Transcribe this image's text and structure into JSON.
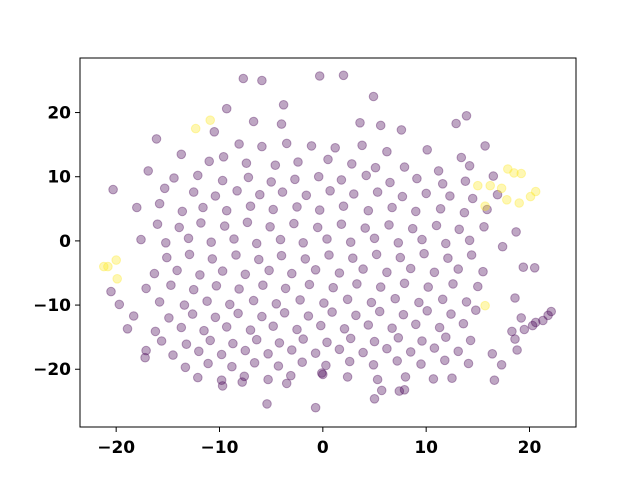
{
  "chart_data": {
    "type": "scatter",
    "title": "",
    "xlabel": "",
    "ylabel": "",
    "xlim": [
      -23.5,
      24.5
    ],
    "ylim": [
      -29,
      28.5
    ],
    "grid": false,
    "legend": "none",
    "x_ticks": [
      -20,
      -10,
      0,
      10,
      20
    ],
    "y_ticks": [
      -20,
      -10,
      0,
      10,
      20
    ],
    "x_tick_labels": [
      "−20",
      "−10",
      "0",
      "10",
      "20"
    ],
    "y_tick_labels": [
      "−20",
      "−10",
      "0",
      "10",
      "20"
    ],
    "marker_opacity": 0.35,
    "colors": {
      "purple": "#440154",
      "yellow": "#fde725"
    },
    "series": [
      {
        "color": "#440154",
        "points": [
          [
            -7.7,
            25.3
          ],
          [
            -5.9,
            25.0
          ],
          [
            -0.3,
            25.7
          ],
          [
            2.0,
            25.8
          ],
          [
            4.9,
            22.5
          ],
          [
            -3.8,
            21.2
          ],
          [
            -9.3,
            20.6
          ],
          [
            -6.7,
            18.6
          ],
          [
            -4.0,
            18.2
          ],
          [
            3.6,
            18.4
          ],
          [
            5.6,
            18.0
          ],
          [
            7.6,
            17.3
          ],
          [
            13.9,
            19.5
          ],
          [
            12.9,
            18.3
          ],
          [
            -16.1,
            15.9
          ],
          [
            -10.5,
            17.0
          ],
          [
            -8.1,
            15.1
          ],
          [
            -5.9,
            14.7
          ],
          [
            -3.5,
            15.2
          ],
          [
            -1.1,
            14.8
          ],
          [
            1.2,
            14.5
          ],
          [
            3.8,
            14.9
          ],
          [
            6.2,
            13.9
          ],
          [
            10.1,
            14.2
          ],
          [
            13.4,
            13.0
          ],
          [
            15.7,
            14.8
          ],
          [
            -13.7,
            13.5
          ],
          [
            -11.0,
            12.4
          ],
          [
            -9.6,
            13.1
          ],
          [
            -7.4,
            12.1
          ],
          [
            -4.6,
            11.8
          ],
          [
            -2.4,
            12.3
          ],
          [
            0.5,
            12.7
          ],
          [
            2.8,
            12.0
          ],
          [
            5.1,
            11.4
          ],
          [
            7.9,
            11.5
          ],
          [
            11.2,
            10.9
          ],
          [
            14.2,
            11.7
          ],
          [
            16.5,
            10.1
          ],
          [
            -16.9,
            10.9
          ],
          [
            -14.4,
            9.8
          ],
          [
            -12.1,
            10.2
          ],
          [
            -9.7,
            9.4
          ],
          [
            -7.2,
            9.9
          ],
          [
            -5.0,
            9.2
          ],
          [
            -2.7,
            9.6
          ],
          [
            -0.4,
            10.0
          ],
          [
            1.8,
            9.5
          ],
          [
            4.2,
            10.2
          ],
          [
            6.5,
            9.1
          ],
          [
            9.1,
            9.7
          ],
          [
            11.6,
            8.9
          ],
          [
            13.8,
            9.3
          ],
          [
            -20.3,
            8.0
          ],
          [
            -15.3,
            8.2
          ],
          [
            -12.5,
            7.6
          ],
          [
            -10.4,
            7.0
          ],
          [
            -8.3,
            7.8
          ],
          [
            -6.1,
            7.2
          ],
          [
            -3.9,
            7.6
          ],
          [
            -1.6,
            7.1
          ],
          [
            0.7,
            7.8
          ],
          [
            3.0,
            7.3
          ],
          [
            5.3,
            7.6
          ],
          [
            7.7,
            6.9
          ],
          [
            10.0,
            7.4
          ],
          [
            12.3,
            7.0
          ],
          [
            14.5,
            6.6
          ],
          [
            16.9,
            7.2
          ],
          [
            -18.0,
            5.2
          ],
          [
            -15.8,
            5.8
          ],
          [
            -13.6,
            4.6
          ],
          [
            -11.6,
            5.2
          ],
          [
            -9.3,
            4.7
          ],
          [
            -7.0,
            5.4
          ],
          [
            -4.8,
            4.9
          ],
          [
            -2.5,
            5.3
          ],
          [
            -0.3,
            4.8
          ],
          [
            2.0,
            5.4
          ],
          [
            4.4,
            4.7
          ],
          [
            6.7,
            5.2
          ],
          [
            9.0,
            4.6
          ],
          [
            11.4,
            5.0
          ],
          [
            13.7,
            4.4
          ],
          [
            15.9,
            4.9
          ],
          [
            -16.0,
            2.6
          ],
          [
            -13.9,
            2.1
          ],
          [
            -11.8,
            2.8
          ],
          [
            -9.5,
            2.3
          ],
          [
            -7.3,
            2.9
          ],
          [
            -5.1,
            2.2
          ],
          [
            -2.8,
            2.7
          ],
          [
            -0.5,
            2.1
          ],
          [
            1.8,
            2.6
          ],
          [
            4.1,
            2.0
          ],
          [
            6.4,
            2.5
          ],
          [
            8.7,
            1.9
          ],
          [
            11.0,
            2.4
          ],
          [
            13.2,
            1.8
          ],
          [
            15.6,
            2.2
          ],
          [
            18.7,
            1.4
          ],
          [
            -17.6,
            0.2
          ],
          [
            -15.2,
            -0.3
          ],
          [
            -13.0,
            0.4
          ],
          [
            -10.8,
            -0.2
          ],
          [
            -8.6,
            0.3
          ],
          [
            -6.4,
            -0.4
          ],
          [
            -4.1,
            0.2
          ],
          [
            -1.9,
            -0.3
          ],
          [
            0.4,
            0.3
          ],
          [
            2.7,
            -0.2
          ],
          [
            5.0,
            0.4
          ],
          [
            7.3,
            -0.3
          ],
          [
            9.6,
            0.2
          ],
          [
            11.9,
            -0.4
          ],
          [
            14.2,
            0.1
          ],
          [
            17.4,
            -0.9
          ],
          [
            -15.1,
            -2.6
          ],
          [
            -12.9,
            -2.1
          ],
          [
            -10.7,
            -2.8
          ],
          [
            -8.4,
            -2.2
          ],
          [
            -6.2,
            -2.9
          ],
          [
            -4.0,
            -2.3
          ],
          [
            -1.7,
            -2.8
          ],
          [
            0.6,
            -2.2
          ],
          [
            2.9,
            -2.7
          ],
          [
            5.2,
            -2.1
          ],
          [
            7.5,
            -2.6
          ],
          [
            9.8,
            -2.0
          ],
          [
            12.1,
            -2.7
          ],
          [
            14.4,
            -2.2
          ],
          [
            -16.3,
            -5.1
          ],
          [
            -14.1,
            -4.6
          ],
          [
            -11.9,
            -5.3
          ],
          [
            -9.7,
            -4.7
          ],
          [
            -7.5,
            -5.2
          ],
          [
            -5.2,
            -4.6
          ],
          [
            -3.0,
            -5.1
          ],
          [
            -0.7,
            -4.5
          ],
          [
            1.6,
            -5.0
          ],
          [
            3.9,
            -4.4
          ],
          [
            6.2,
            -4.9
          ],
          [
            8.5,
            -4.3
          ],
          [
            10.8,
            -4.9
          ],
          [
            13.1,
            -4.4
          ],
          [
            15.5,
            -4.8
          ],
          [
            19.4,
            -4.1
          ],
          [
            20.5,
            -4.2
          ],
          [
            -17.1,
            -7.4
          ],
          [
            -14.7,
            -6.9
          ],
          [
            -12.5,
            -7.6
          ],
          [
            -10.3,
            -7.0
          ],
          [
            -8.1,
            -7.5
          ],
          [
            -5.8,
            -6.9
          ],
          [
            -3.6,
            -7.4
          ],
          [
            -1.3,
            -6.8
          ],
          [
            1.0,
            -7.3
          ],
          [
            3.3,
            -6.7
          ],
          [
            5.6,
            -7.2
          ],
          [
            7.9,
            -6.6
          ],
          [
            10.2,
            -7.2
          ],
          [
            12.6,
            -6.7
          ],
          [
            15.0,
            -7.1
          ],
          [
            -20.5,
            -7.9
          ],
          [
            -19.7,
            -9.9
          ],
          [
            -15.8,
            -9.5
          ],
          [
            -13.4,
            -10.0
          ],
          [
            -11.2,
            -9.4
          ],
          [
            -9.0,
            -9.9
          ],
          [
            -6.7,
            -9.3
          ],
          [
            -4.5,
            -9.8
          ],
          [
            -2.2,
            -9.2
          ],
          [
            0.1,
            -9.7
          ],
          [
            2.4,
            -9.1
          ],
          [
            4.7,
            -9.6
          ],
          [
            7.0,
            -9.0
          ],
          [
            9.3,
            -9.6
          ],
          [
            11.6,
            -9.1
          ],
          [
            13.9,
            -9.5
          ],
          [
            18.6,
            -8.9
          ],
          [
            -18.3,
            -11.7
          ],
          [
            -14.9,
            -12.0
          ],
          [
            -12.6,
            -11.4
          ],
          [
            -10.4,
            -11.9
          ],
          [
            -8.2,
            -11.3
          ],
          [
            -5.9,
            -11.8
          ],
          [
            -3.7,
            -11.2
          ],
          [
            -1.4,
            -11.7
          ],
          [
            0.9,
            -11.1
          ],
          [
            3.2,
            -11.6
          ],
          [
            5.5,
            -11.0
          ],
          [
            7.8,
            -11.5
          ],
          [
            10.1,
            -10.9
          ],
          [
            12.4,
            -11.4
          ],
          [
            14.8,
            -10.8
          ],
          [
            19.2,
            -12.0
          ],
          [
            20.6,
            -12.7
          ],
          [
            21.3,
            -12.4
          ],
          [
            21.8,
            -11.6
          ],
          [
            22.1,
            -11.0
          ],
          [
            -18.9,
            -13.7
          ],
          [
            -16.2,
            -14.1
          ],
          [
            -13.7,
            -13.5
          ],
          [
            -11.5,
            -14.0
          ],
          [
            -9.3,
            -13.4
          ],
          [
            -7.0,
            -13.9
          ],
          [
            -4.8,
            -13.3
          ],
          [
            -2.5,
            -13.8
          ],
          [
            -0.2,
            -13.2
          ],
          [
            2.1,
            -13.7
          ],
          [
            4.4,
            -13.1
          ],
          [
            6.7,
            -13.6
          ],
          [
            9.0,
            -13.0
          ],
          [
            11.3,
            -13.5
          ],
          [
            13.6,
            -12.9
          ],
          [
            18.3,
            -14.1
          ],
          [
            19.5,
            -13.8
          ],
          [
            20.3,
            -13.2
          ],
          [
            -15.6,
            -15.6
          ],
          [
            -13.2,
            -16.1
          ],
          [
            -10.9,
            -15.5
          ],
          [
            -8.7,
            -16.0
          ],
          [
            -6.4,
            -15.4
          ],
          [
            -4.2,
            -15.9
          ],
          [
            -1.9,
            -15.3
          ],
          [
            0.4,
            -15.8
          ],
          [
            2.7,
            -15.2
          ],
          [
            5.0,
            -15.7
          ],
          [
            7.3,
            -15.1
          ],
          [
            9.6,
            -15.6
          ],
          [
            11.9,
            -15.0
          ],
          [
            14.3,
            -15.5
          ],
          [
            18.6,
            -15.3
          ],
          [
            -17.1,
            -17.1
          ],
          [
            -14.5,
            -17.8
          ],
          [
            -12.0,
            -17.2
          ],
          [
            -9.8,
            -17.7
          ],
          [
            -7.5,
            -17.1
          ],
          [
            -5.3,
            -17.6
          ],
          [
            -3.0,
            -17.0
          ],
          [
            -0.7,
            -17.5
          ],
          [
            1.6,
            -16.9
          ],
          [
            3.9,
            -17.4
          ],
          [
            6.2,
            -16.8
          ],
          [
            8.5,
            -17.3
          ],
          [
            10.8,
            -16.7
          ],
          [
            13.1,
            -17.2
          ],
          [
            16.4,
            -17.6
          ],
          [
            18.8,
            -17.0
          ],
          [
            -17.2,
            -18.2
          ],
          [
            -13.3,
            -19.7
          ],
          [
            -11.1,
            -19.1
          ],
          [
            -8.8,
            -19.6
          ],
          [
            -6.6,
            -19.0
          ],
          [
            -4.3,
            -19.5
          ],
          [
            -2.0,
            -18.9
          ],
          [
            0.3,
            -19.4
          ],
          [
            2.6,
            -18.8
          ],
          [
            4.9,
            -19.3
          ],
          [
            7.2,
            -18.7
          ],
          [
            9.5,
            -19.2
          ],
          [
            11.8,
            -18.6
          ],
          [
            14.1,
            -19.1
          ],
          [
            17.3,
            -19.3
          ],
          [
            -12.1,
            -21.3
          ],
          [
            -9.8,
            -21.7
          ],
          [
            -7.6,
            -21.1
          ],
          [
            -5.3,
            -21.6
          ],
          [
            -3.1,
            -21.0
          ],
          [
            0.0,
            -20.8
          ],
          [
            2.4,
            -21.2
          ],
          [
            5.3,
            -21.6
          ],
          [
            8.0,
            -21.2
          ],
          [
            10.7,
            -21.5
          ],
          [
            12.5,
            -21.4
          ],
          [
            16.6,
            -21.7
          ],
          [
            -9.7,
            -22.6
          ],
          [
            -7.8,
            -22.0
          ],
          [
            -3.5,
            -22.2
          ],
          [
            5.7,
            -23.3
          ],
          [
            7.4,
            -23.4
          ],
          [
            7.9,
            -23.2
          ],
          [
            5.0,
            -24.6
          ],
          [
            -5.4,
            -25.4
          ],
          [
            -0.7,
            -26.0
          ],
          [
            -0.1,
            -20.6
          ]
        ]
      },
      {
        "color": "#fde725",
        "points": [
          [
            -12.3,
            17.5
          ],
          [
            -10.9,
            18.8
          ],
          [
            17.9,
            11.2
          ],
          [
            18.5,
            10.6
          ],
          [
            19.2,
            10.5
          ],
          [
            15.0,
            8.6
          ],
          [
            16.2,
            8.6
          ],
          [
            17.3,
            8.2
          ],
          [
            20.6,
            7.7
          ],
          [
            20.1,
            6.9
          ],
          [
            19.0,
            5.9
          ],
          [
            17.8,
            6.4
          ],
          [
            15.7,
            5.4
          ],
          [
            -21.2,
            -4.0
          ],
          [
            -20.8,
            -4.0
          ],
          [
            -20.0,
            -3.0
          ],
          [
            -19.9,
            -5.9
          ],
          [
            15.7,
            -10.1
          ]
        ]
      }
    ]
  }
}
